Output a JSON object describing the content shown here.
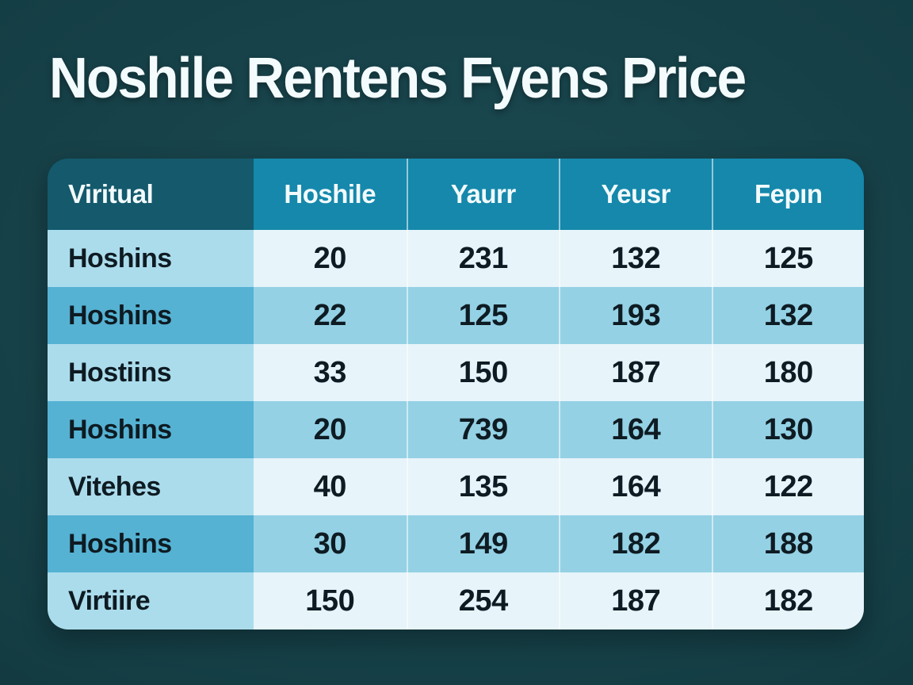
{
  "chart_data": {
    "type": "table",
    "title": "Noshile Rentens Fyens Price",
    "columns": [
      "Viritual",
      "Hoshile",
      "Yaurr",
      "Yeusr",
      "Fepın"
    ],
    "rows": [
      {
        "label": "Hoshins",
        "values": [
          "20",
          "231",
          "132",
          "125"
        ]
      },
      {
        "label": "Hoshins",
        "values": [
          "22",
          "125",
          "193",
          "132"
        ]
      },
      {
        "label": "Hostiins",
        "values": [
          "33",
          "150",
          "187",
          "180"
        ]
      },
      {
        "label": "Hoshins",
        "values": [
          "20",
          "739",
          "164",
          "130"
        ]
      },
      {
        "label": "Vitehes",
        "values": [
          "40",
          "135",
          "164",
          "122"
        ]
      },
      {
        "label": "Hoshins",
        "values": [
          "30",
          "149",
          "182",
          "188"
        ]
      },
      {
        "label": "Virtiire",
        "values": [
          "150",
          "254",
          "187",
          "182"
        ]
      }
    ],
    "layout": {
      "header_row": true,
      "alternating_row_colors": true,
      "first_column_is_label": true
    }
  },
  "colors": {
    "bg-center": "#1c4a52",
    "bg-mid": "#143d44",
    "bg-edge": "#0b272c",
    "title-text": "#f4fbfd",
    "header-first-bg": "#14596c",
    "header-bg": "#1588ab",
    "header-text": "#f2fafc",
    "odd-label": "#abdcec",
    "odd-val": "#e7f4fa",
    "even-label": "#55b2d3",
    "even-val": "#94d1e5",
    "cell-text": "#0e1b22",
    "separator": "rgba(255,255,255,0.55)"
  }
}
